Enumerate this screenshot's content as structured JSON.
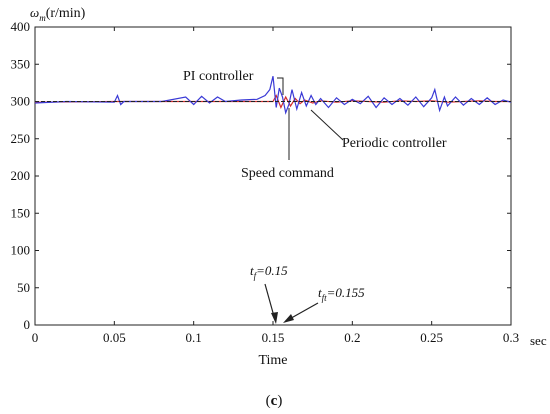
{
  "chart_data": {
    "type": "line",
    "ylabel_symbol": "ω",
    "ylabel_subscript": "m",
    "ylabel_unit": "(r/min)",
    "xlabel": "Time",
    "x_unit": "sec",
    "xlim": [
      0,
      0.3
    ],
    "ylim": [
      0,
      400
    ],
    "x_ticks": [
      0,
      0.05,
      0.1,
      0.15,
      0.2,
      0.25,
      0.3
    ],
    "x_tick_labels": [
      "0",
      "0.05",
      "0.1",
      "0.15",
      "0.2",
      "0.25",
      "0.3"
    ],
    "y_ticks": [
      0,
      50,
      100,
      150,
      200,
      250,
      300,
      350,
      400
    ],
    "y_tick_labels": [
      "0",
      "50",
      "100",
      "150",
      "200",
      "250",
      "300",
      "350",
      "400"
    ],
    "series": [
      {
        "name": "Speed command",
        "color": "#222222",
        "x": [
          0,
          0.3
        ],
        "y": [
          300,
          300
        ]
      },
      {
        "name": "PI controller",
        "color": "#3a3ad6",
        "x": [
          0,
          0.02,
          0.05,
          0.052,
          0.054,
          0.056,
          0.08,
          0.095,
          0.1,
          0.105,
          0.11,
          0.115,
          0.12,
          0.13,
          0.14,
          0.145,
          0.148,
          0.15,
          0.152,
          0.154,
          0.156,
          0.158,
          0.16,
          0.162,
          0.165,
          0.168,
          0.171,
          0.174,
          0.177,
          0.18,
          0.185,
          0.19,
          0.195,
          0.2,
          0.205,
          0.21,
          0.215,
          0.22,
          0.225,
          0.23,
          0.235,
          0.24,
          0.245,
          0.25,
          0.252,
          0.255,
          0.258,
          0.26,
          0.265,
          0.27,
          0.275,
          0.28,
          0.285,
          0.29,
          0.295,
          0.3
        ],
        "y": [
          298,
          300,
          299,
          308,
          296,
          300,
          300,
          306,
          296,
          307,
          298,
          306,
          300,
          302,
          303,
          308,
          316,
          334,
          292,
          318,
          306,
          285,
          296,
          316,
          290,
          312,
          294,
          308,
          296,
          304,
          292,
          305,
          296,
          303,
          297,
          307,
          292,
          305,
          296,
          304,
          295,
          306,
          293,
          305,
          316,
          288,
          306,
          294,
          306,
          295,
          304,
          296,
          305,
          296,
          302,
          299
        ]
      },
      {
        "name": "Periodic controller",
        "color": "#d42b2b",
        "x": [
          0,
          0.05,
          0.1,
          0.15,
          0.152,
          0.155,
          0.158,
          0.161,
          0.164,
          0.167,
          0.17,
          0.175,
          0.18,
          0.19,
          0.2,
          0.21,
          0.22,
          0.23,
          0.24,
          0.25,
          0.26,
          0.27,
          0.28,
          0.29,
          0.3
        ],
        "y": [
          299,
          300,
          300,
          300,
          308,
          292,
          306,
          294,
          304,
          297,
          302,
          298,
          301,
          299,
          301,
          300,
          299,
          301,
          300,
          301,
          299,
          300,
          301,
          300,
          300
        ]
      }
    ],
    "annotations": [
      {
        "text": "PI controller"
      },
      {
        "text": "Periodic controller"
      },
      {
        "text": "Speed command"
      }
    ],
    "markers": [
      {
        "symbol": "t",
        "sub": "f",
        "value_text": "=0.15",
        "x": 0.15
      },
      {
        "symbol": "t",
        "sub": "ft",
        "value_text": "=0.155",
        "x": 0.155
      }
    ],
    "panel_label_open": "(",
    "panel_label_letter": "c",
    "panel_label_close": ")",
    "grid": false,
    "legend": "none"
  }
}
